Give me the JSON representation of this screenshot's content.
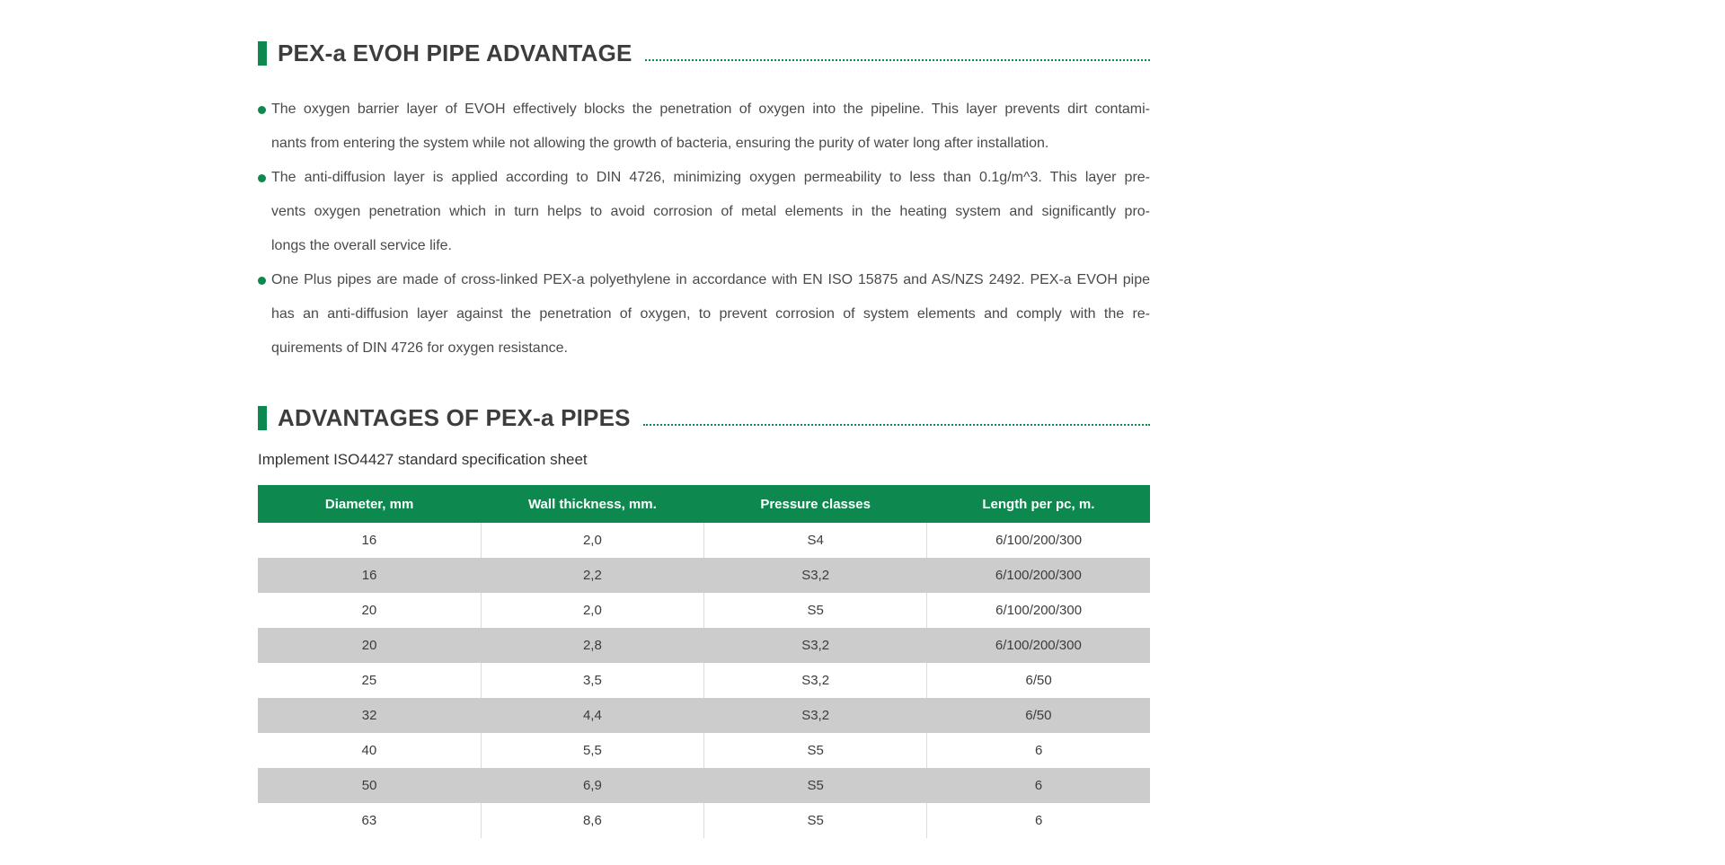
{
  "colors": {
    "accent_green": "#0d8950",
    "row_alt_gray": "#cccccc",
    "heading_text": "#3d3d3d",
    "body_text": "#4a4a4a",
    "header_text_on_green": "#ffffff"
  },
  "sections": {
    "advantage": {
      "title": "PEX-a EVOH PIPE ADVANTAGE"
    },
    "pipes": {
      "title": "ADVANTAGES OF PEX-a PIPES"
    }
  },
  "bullets": [
    {
      "lines": [
        "The oxygen barrier layer of EVOH effectively blocks the penetration of oxygen into the pipeline. This layer prevents dirt contami-",
        "nants from entering the system while not allowing the growth of bacteria, ensuring the purity of water long after installation."
      ]
    },
    {
      "lines": [
        "The anti-diffusion layer is applied according to DIN 4726, minimizing oxygen permeability to less than 0.1g/m^3. This layer pre-",
        "vents oxygen penetration which in turn helps to avoid corrosion of metal elements in the heating system and significantly pro-",
        "longs the overall service life."
      ]
    },
    {
      "lines": [
        "One Plus pipes are made of cross-linked PEX-a polyethylene in accordance with EN ISO 15875 and AS/NZS 2492. PEX-a EVOH pipe",
        "has an anti-diffusion layer against the penetration of oxygen, to prevent corrosion of system elements and comply with the re-",
        "quirements of DIN 4726 for oxygen resistance."
      ]
    }
  ],
  "table_intro": "Implement ISO4427 standard specification sheet",
  "table": {
    "headers": [
      "Diameter, mm",
      "Wall thickness, mm.",
      "Pressure classes",
      "Length per pc, m."
    ],
    "rows": [
      [
        "16",
        "2,0",
        "S4",
        "6/100/200/300"
      ],
      [
        "16",
        "2,2",
        "S3,2",
        "6/100/200/300"
      ],
      [
        "20",
        "2,0",
        "S5",
        "6/100/200/300"
      ],
      [
        "20",
        "2,8",
        "S3,2",
        "6/100/200/300"
      ],
      [
        "25",
        "3,5",
        "S3,2",
        "6/50"
      ],
      [
        "32",
        "4,4",
        "S3,2",
        "6/50"
      ],
      [
        "40",
        "5,5",
        "S5",
        "6"
      ],
      [
        "50",
        "6,9",
        "S5",
        "6"
      ],
      [
        "63",
        "8,6",
        "S5",
        "6"
      ]
    ]
  }
}
